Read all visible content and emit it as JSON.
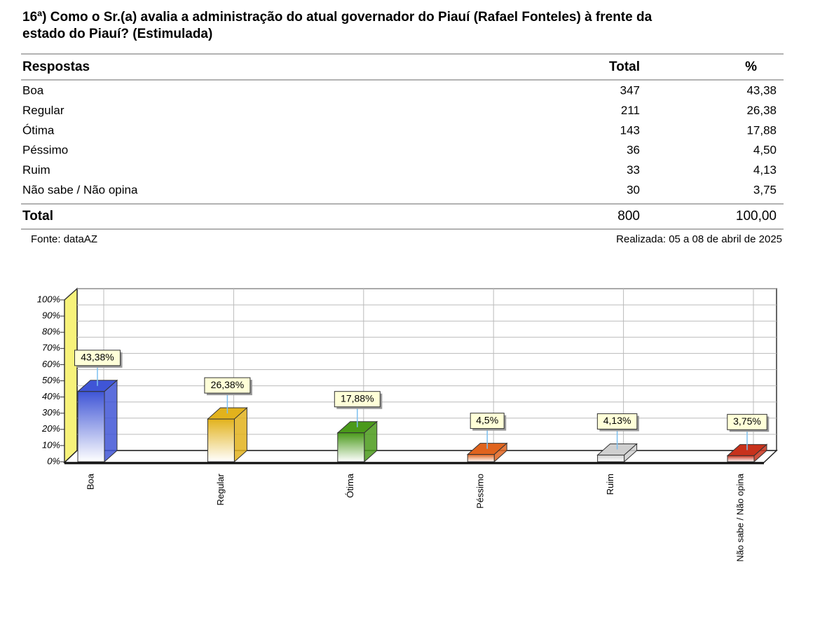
{
  "title": [
    "16ª) Como o Sr.(a) avalia a administração do atual governador do Piauí (Rafael Fonteles) à frente da",
    "estado do Piauí? (Estimulada)"
  ],
  "table": {
    "header": [
      "Respostas",
      "Total",
      "%"
    ],
    "rows": [
      [
        "Boa",
        "347",
        "43,38"
      ],
      [
        "Regular",
        "211",
        "26,38"
      ],
      [
        "Ótima",
        "143",
        "17,88"
      ],
      [
        "Péssimo",
        "36",
        "4,50"
      ],
      [
        "Ruim",
        "33",
        "4,13"
      ],
      [
        "Não sabe / Não opina",
        "30",
        "3,75"
      ]
    ],
    "total": [
      "Total",
      "800",
      "100,00"
    ]
  },
  "footer": {
    "source": "Fonte: dataAZ",
    "date": "Realizada: 05 a 08 de abril de 2025"
  },
  "chart_data": {
    "type": "bar3d",
    "categories": [
      "Boa",
      "Regular",
      "Ótima",
      "Péssimo",
      "Ruim",
      "Não sabe / Não opina"
    ],
    "values": [
      43.38,
      26.38,
      17.88,
      4.5,
      4.13,
      3.75
    ],
    "value_labels": [
      "43,38%",
      "26,38%",
      "17,88%",
      "4,5%",
      "4,13%",
      "3,75%"
    ],
    "colors": [
      "#3f55d6",
      "#e2b21c",
      "#4a9a1a",
      "#e0641e",
      "#cfcfcf",
      "#c8321c"
    ],
    "ylim": [
      0,
      100
    ],
    "yticks": [
      {
        "value": 0,
        "label": "0%"
      },
      {
        "value": 10,
        "label": "10%"
      },
      {
        "value": 20,
        "label": "20%"
      },
      {
        "value": 30,
        "label": "30%"
      },
      {
        "value": 40,
        "label": "40%"
      },
      {
        "value": 50,
        "label": "50%"
      },
      {
        "value": 60,
        "label": "60%"
      },
      {
        "value": 70,
        "label": "70%"
      },
      {
        "value": 80,
        "label": "80%"
      },
      {
        "value": 90,
        "label": "90%"
      },
      {
        "value": 100,
        "label": "100%"
      }
    ],
    "grid": true
  }
}
